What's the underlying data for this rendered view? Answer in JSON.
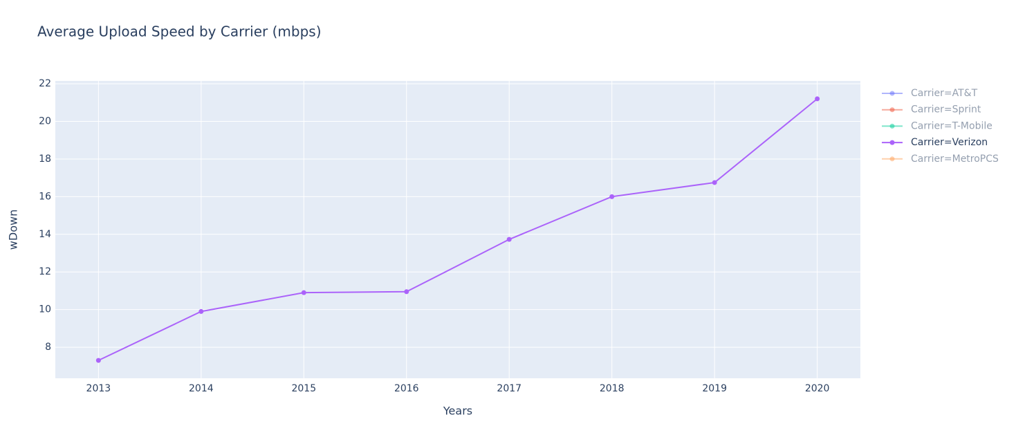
{
  "chart_data": {
    "type": "line",
    "title": "Average Upload Speed by Carrier (mbps)",
    "x_label": "Years",
    "y_label": "wDown",
    "x": [
      2013,
      2014,
      2015,
      2016,
      2017,
      2018,
      2019,
      2020
    ],
    "series": [
      {
        "name": "Carrier=AT&T",
        "color": "#636efa",
        "visible": false,
        "values": [
          null,
          null,
          null,
          null,
          null,
          null,
          null,
          null
        ]
      },
      {
        "name": "Carrier=Sprint",
        "color": "#EF553B",
        "visible": false,
        "values": [
          null,
          null,
          null,
          null,
          null,
          null,
          null,
          null
        ]
      },
      {
        "name": "Carrier=T-Mobile",
        "color": "#00cc96",
        "visible": false,
        "values": [
          null,
          null,
          null,
          null,
          null,
          null,
          null,
          null
        ]
      },
      {
        "name": "Carrier=Verizon",
        "color": "#ab63fa",
        "visible": true,
        "values": [
          7.3,
          9.9,
          10.9,
          10.95,
          13.73,
          16.0,
          16.75,
          21.2
        ]
      },
      {
        "name": "Carrier=MetroPCS",
        "color": "#FFA15A",
        "visible": false,
        "values": [
          null,
          null,
          null,
          null,
          null,
          null,
          null,
          null
        ]
      }
    ],
    "xlim": [
      2012.58,
      2020.42
    ],
    "xticks": [
      2013,
      2014,
      2015,
      2016,
      2017,
      2018,
      2019,
      2020
    ],
    "ylim": [
      6.35,
      22.15
    ],
    "yticks": [
      8,
      10,
      12,
      14,
      16,
      18,
      20,
      22
    ],
    "grid": true,
    "legend": "right"
  }
}
